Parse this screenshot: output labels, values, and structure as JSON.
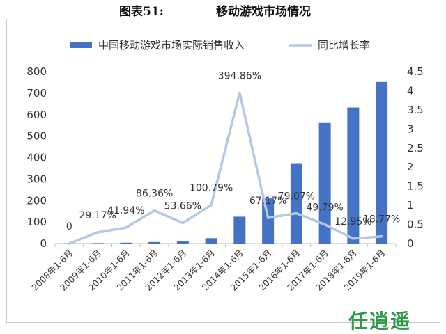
{
  "caption": {
    "number": "图表51:",
    "title": "移动游戏市场情况"
  },
  "watermark": "任逍遥",
  "chart_data": {
    "type": "bar+line",
    "categories": [
      "2008年1-6月",
      "2009年1-6月",
      "2010年1-6月",
      "2011年1-6月",
      "2012年1-6月",
      "2013年1-6月",
      "2014年1-6月",
      "2015年1-6月",
      "2016年1-6月",
      "2017年1-6月",
      "2018年1-6月",
      "2019年1-6月"
    ],
    "series": [
      {
        "name": "中国移动游戏市场实际销售收入",
        "type": "bar",
        "axis": "left",
        "color": "#4472c4",
        "values": [
          1,
          2,
          4,
          7,
          11,
          25,
          125,
          210,
          374,
          561,
          633,
          752
        ]
      },
      {
        "name": "同比增长率",
        "type": "line",
        "axis": "right",
        "color": "#b4c7e7",
        "values": [
          0,
          0.2917,
          0.4194,
          0.8636,
          0.5366,
          1.0079,
          3.9486,
          0.6717,
          0.7907,
          0.4979,
          0.1295,
          0.1877
        ],
        "labels": [
          "0",
          "29.17%",
          "41.94%",
          "86.36%",
          "53.66%",
          "100.79%",
          "394.86%",
          "67.17%",
          "79.07%",
          "49.79%",
          "12.95%",
          "18.77%"
        ]
      }
    ],
    "left_axis": {
      "ylim": [
        0,
        800
      ],
      "ticks": [
        "0",
        "100",
        "200",
        "300",
        "400",
        "500",
        "600",
        "700",
        "800"
      ]
    },
    "right_axis": {
      "ylim": [
        0,
        4.5
      ],
      "ticks": [
        "0",
        "0.5",
        "1",
        "1.5",
        "2",
        "2.5",
        "3",
        "3.5",
        "4",
        "4.5"
      ]
    },
    "legend_position": "top",
    "grid": false
  }
}
